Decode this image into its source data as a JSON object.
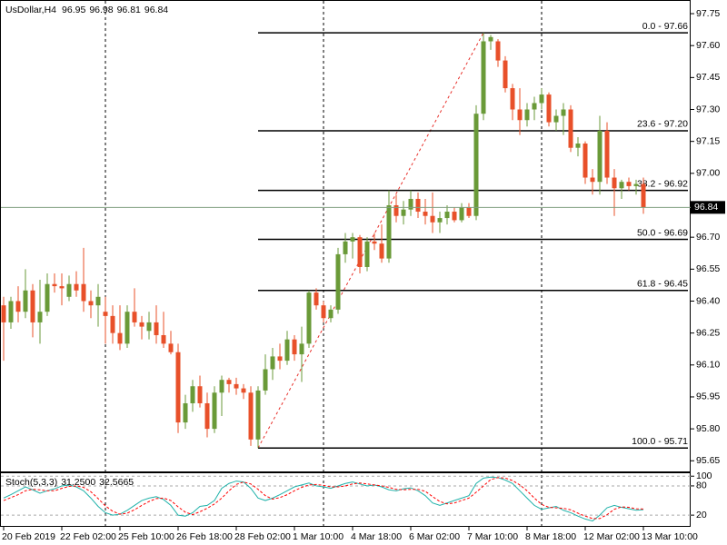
{
  "chart_data": [
    {
      "type": "candlestick",
      "title": "UsDollar,H4",
      "categories": [
        "20 Feb 2019",
        null,
        null,
        null,
        null,
        null,
        null,
        null,
        "22 Feb 02:00",
        null,
        null,
        null,
        null,
        null,
        null,
        null,
        "25 Feb 10:00",
        null,
        null,
        null,
        null,
        null,
        null,
        null,
        "26 Feb 18:00",
        null,
        null,
        null,
        null,
        null,
        null,
        null,
        "28 Feb 02:00",
        null,
        null,
        null,
        null,
        null,
        null,
        null,
        "1 Mar 10:00",
        null,
        null,
        null,
        null,
        null,
        null,
        null,
        "4 Mar 18:00",
        null,
        null,
        null,
        null,
        null,
        null,
        null,
        "6 Mar 02:00",
        null,
        null,
        null,
        null,
        null,
        null,
        null,
        "7 Mar 10:00",
        null,
        null,
        null,
        null,
        null,
        null,
        null,
        "8 Mar 18:00",
        null,
        null,
        null,
        null,
        null,
        null,
        null,
        "12 Mar 02:00",
        null,
        null,
        null,
        null,
        null,
        null,
        null,
        "13 Mar 10:00"
      ],
      "open": [
        96.38,
        96.3,
        96.4,
        96.35,
        96.45,
        96.3,
        96.35,
        96.48,
        96.47,
        96.42,
        96.48,
        96.48,
        96.4,
        96.38,
        96.35,
        96.33,
        96.25,
        96.2,
        96.35,
        96.3,
        96.26,
        96.3,
        96.24,
        96.2,
        96.16,
        95.83,
        95.92,
        96.0,
        95.92,
        95.8,
        95.97,
        96.03,
        96.01,
        95.99,
        95.97,
        95.75,
        95.98,
        96.08,
        96.14,
        96.12,
        96.22,
        96.15,
        96.2,
        96.44,
        96.38,
        96.32,
        96.36,
        96.62,
        96.68,
        96.7,
        96.56,
        96.68,
        96.67,
        96.6,
        96.85,
        96.8,
        96.83,
        96.88,
        96.82,
        96.8,
        96.77,
        96.79,
        96.82,
        96.78,
        96.84,
        96.8,
        97.28,
        97.62,
        97.62,
        97.53,
        97.4,
        97.3,
        97.25,
        97.3,
        97.33,
        97.37,
        97.24,
        97.27,
        97.3,
        97.12,
        97.14,
        96.98,
        96.96,
        97.2,
        96.98,
        96.93,
        96.96,
        96.94,
        96.95
      ],
      "high": [
        96.42,
        96.42,
        96.47,
        96.55,
        96.48,
        96.5,
        96.53,
        96.53,
        96.53,
        96.52,
        96.54,
        96.65,
        96.45,
        96.48,
        96.42,
        96.38,
        96.38,
        96.38,
        96.46,
        96.33,
        96.35,
        96.38,
        96.35,
        96.26,
        96.2,
        95.96,
        96.03,
        96.05,
        95.97,
        96.0,
        96.05,
        96.04,
        96.04,
        96.01,
        96.0,
        96.0,
        96.15,
        96.18,
        96.2,
        96.26,
        96.24,
        96.28,
        96.45,
        96.46,
        96.4,
        96.38,
        96.65,
        96.72,
        96.72,
        96.71,
        96.7,
        96.72,
        96.76,
        96.92,
        96.9,
        96.87,
        96.92,
        96.91,
        96.88,
        96.91,
        96.82,
        96.85,
        96.84,
        96.86,
        96.86,
        97.32,
        97.66,
        97.65,
        97.63,
        97.55,
        97.42,
        97.4,
        97.33,
        97.36,
        97.4,
        97.38,
        97.3,
        97.33,
        97.32,
        97.17,
        97.15,
        97.02,
        97.27,
        97.24,
        97.02,
        96.97,
        96.98,
        96.97,
        96.98
      ],
      "low": [
        96.12,
        96.27,
        96.3,
        96.32,
        96.23,
        96.2,
        96.33,
        96.44,
        96.38,
        96.4,
        96.42,
        96.35,
        96.32,
        96.28,
        96.2,
        96.2,
        96.17,
        96.18,
        96.28,
        96.22,
        96.22,
        96.2,
        96.18,
        96.15,
        95.78,
        95.8,
        95.88,
        95.9,
        95.76,
        95.78,
        95.86,
        95.97,
        95.96,
        95.94,
        95.72,
        95.71,
        95.96,
        96.03,
        96.08,
        96.1,
        96.12,
        96.02,
        96.18,
        96.36,
        96.3,
        96.3,
        96.34,
        96.58,
        96.6,
        96.53,
        96.54,
        96.64,
        96.58,
        96.58,
        96.77,
        96.76,
        96.8,
        96.79,
        96.76,
        96.72,
        96.72,
        96.76,
        96.77,
        96.77,
        96.79,
        96.78,
        97.25,
        97.58,
        97.5,
        97.38,
        97.25,
        97.18,
        97.22,
        97.25,
        97.3,
        97.22,
        97.2,
        97.18,
        97.1,
        97.08,
        96.95,
        96.9,
        96.9,
        96.95,
        96.8,
        96.88,
        96.92,
        96.9,
        96.81
      ],
      "close": [
        96.3,
        96.4,
        96.35,
        96.45,
        96.3,
        96.35,
        96.48,
        96.47,
        96.46,
        96.48,
        96.45,
        96.4,
        96.38,
        96.42,
        96.33,
        96.25,
        96.2,
        96.35,
        96.3,
        96.28,
        96.3,
        96.24,
        96.2,
        96.16,
        95.83,
        95.92,
        96.0,
        95.92,
        95.8,
        95.97,
        96.03,
        96.01,
        95.99,
        95.97,
        95.75,
        95.98,
        96.08,
        96.14,
        96.12,
        96.22,
        96.15,
        96.2,
        96.44,
        96.38,
        96.32,
        96.36,
        96.62,
        96.68,
        96.7,
        96.56,
        96.68,
        96.67,
        96.6,
        96.85,
        96.8,
        96.83,
        96.88,
        96.82,
        96.8,
        96.77,
        96.79,
        96.82,
        96.78,
        96.84,
        96.8,
        97.28,
        97.62,
        97.64,
        97.53,
        97.4,
        97.3,
        97.25,
        97.3,
        97.33,
        97.37,
        97.24,
        97.27,
        97.3,
        97.12,
        97.14,
        96.98,
        96.96,
        97.2,
        96.98,
        96.93,
        96.96,
        96.94,
        96.95,
        96.84
      ],
      "up_color": "#6a9a38",
      "down_color": "#e8502a",
      "ylim": [
        95.6,
        97.78
      ],
      "yticks": [
        97.75,
        {
          "value": 97.6,
          "label": "97.60"
        },
        97.45,
        {
          "value": 97.3,
          "label": "97.30"
        },
        97.15,
        {
          "value": 97.0,
          "label": "97.00"
        },
        96.85,
        {
          "value": 96.7,
          "label": "96.70"
        },
        96.55,
        {
          "value": 96.4,
          "label": "96.40"
        },
        96.25,
        {
          "value": 96.1,
          "label": "96.10"
        },
        95.95,
        {
          "value": 95.8,
          "label": "95.80"
        },
        95.65
      ],
      "fib_levels": [
        {
          "value": 97.66,
          "label": "0.0 - 97.66"
        },
        {
          "value": 97.2,
          "label": "23.6 - 97.20"
        },
        {
          "value": 96.92,
          "label": "38.2 - 96.92"
        },
        {
          "value": 96.69,
          "label": "50.0 - 96.69"
        },
        {
          "value": 96.45,
          "label": "61.8 - 96.45"
        },
        {
          "value": 95.71,
          "label": "100.0 - 95.71"
        }
      ]
    },
    {
      "type": "line",
      "title": "Stoch(5,3,3)",
      "series": [
        {
          "color": "#20b2aa",
          "value_label": "31.2500",
          "values": [
            55,
            62,
            70,
            78,
            72,
            65,
            70,
            74,
            80,
            82,
            78,
            70,
            55,
            38,
            25,
            20,
            22,
            30,
            40,
            50,
            55,
            58,
            52,
            40,
            20,
            18,
            25,
            38,
            40,
            50,
            75,
            85,
            90,
            88,
            75,
            55,
            50,
            55,
            62,
            70,
            78,
            82,
            86,
            80,
            78,
            75,
            80,
            85,
            88,
            84,
            80,
            82,
            78,
            72,
            70,
            74,
            76,
            70,
            60,
            45,
            40,
            45,
            50,
            55,
            60,
            85,
            96,
            98,
            97,
            92,
            85,
            70,
            55,
            40,
            32,
            35,
            38,
            30,
            25,
            18,
            12,
            8,
            20,
            35,
            40,
            36,
            33,
            30,
            31.25
          ]
        },
        {
          "color": "#ff0000",
          "dash": true,
          "value_label": "32.5665",
          "values": [
            50,
            56,
            62,
            70,
            73,
            72,
            70,
            70,
            75,
            79,
            80,
            77,
            68,
            54,
            39,
            28,
            22,
            24,
            31,
            40,
            48,
            54,
            55,
            50,
            37,
            26,
            21,
            27,
            34,
            43,
            55,
            70,
            83,
            88,
            84,
            73,
            60,
            53,
            56,
            62,
            70,
            77,
            82,
            83,
            81,
            78,
            78,
            80,
            84,
            86,
            84,
            82,
            80,
            77,
            73,
            72,
            73,
            73,
            69,
            58,
            48,
            43,
            45,
            50,
            55,
            67,
            80,
            93,
            97,
            96,
            91,
            82,
            70,
            55,
            42,
            36,
            35,
            34,
            31,
            24,
            18,
            13,
            13,
            21,
            32,
            37,
            36,
            33,
            32.5665
          ]
        }
      ],
      "ylim": [
        -4,
        106
      ],
      "yticks": [
        100,
        80,
        20
      ],
      "grid": true
    }
  ]
}
